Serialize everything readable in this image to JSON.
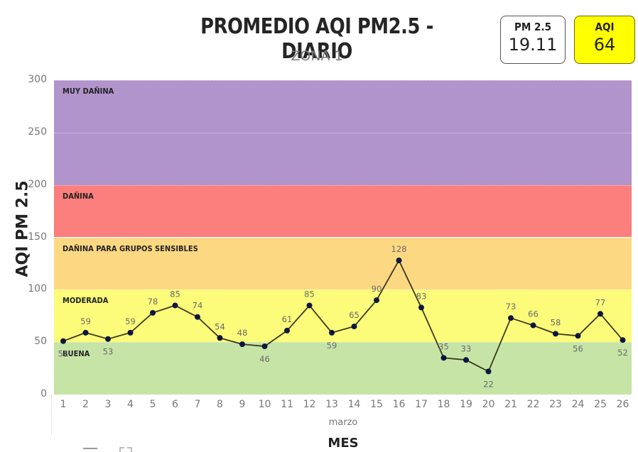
{
  "header": {
    "title": "PROMEDIO AQI PM2.5 - DIARIO",
    "subtitle": "ZONA 1"
  },
  "cards": {
    "pm25": {
      "label": "PM 2.5",
      "value": "19.11",
      "border": "#555555",
      "bg": "#ffffff"
    },
    "aqi": {
      "label": "AQI",
      "value": "64",
      "border": "#6b6b00",
      "bg": "#ffff00"
    }
  },
  "axes": {
    "ylabel": "AQI PM 2.5",
    "yticks": [
      "300",
      "250",
      "200",
      "150",
      "100",
      "50",
      "0"
    ],
    "xlabel_sub": "marzo",
    "xlabel": "MES"
  },
  "bands": [
    {
      "label": "MUY DAÑINA",
      "from": 200,
      "to": 300,
      "color": "#b294cc"
    },
    {
      "label": "DAÑINA",
      "from": 150,
      "to": 200,
      "color": "#fb7f7d"
    },
    {
      "label": "DAÑINA PARA GRUPOS SENSIBLES",
      "from": 100,
      "to": 150,
      "color": "#fdd883"
    },
    {
      "label": "MODERADA",
      "from": 50,
      "to": 100,
      "color": "#fcfb7a"
    },
    {
      "label": "BUENA",
      "from": 0,
      "to": 50,
      "color": "#c6e4a6"
    }
  ],
  "chart_data": {
    "type": "line",
    "title": "PROMEDIO AQI PM2.5 - DIARIO",
    "subtitle": "ZONA 1",
    "xlabel": "MES (marzo)",
    "ylabel": "AQI PM 2.5",
    "ylim": [
      0,
      300
    ],
    "yticks": [
      0,
      50,
      100,
      150,
      200,
      250,
      300
    ],
    "grid": true,
    "x": [
      1,
      2,
      3,
      4,
      5,
      6,
      7,
      8,
      9,
      10,
      11,
      12,
      13,
      14,
      15,
      16,
      17,
      18,
      19,
      20,
      21,
      22,
      23,
      24,
      25,
      26
    ],
    "series": [
      {
        "name": "AQI PM 2.5",
        "color": "#3a3a1a",
        "marker_color": "#0d1640",
        "values": [
          51,
          59,
          53,
          59,
          78,
          85,
          74,
          54,
          48,
          46,
          61,
          85,
          59,
          65,
          90,
          128,
          83,
          35,
          33,
          22,
          73,
          66,
          58,
          56,
          77,
          52
        ]
      }
    ],
    "background_bands": [
      {
        "label": "BUENA",
        "range": [
          0,
          50
        ]
      },
      {
        "label": "MODERADA",
        "range": [
          50,
          100
        ]
      },
      {
        "label": "DAÑINA PARA GRUPOS SENSIBLES",
        "range": [
          100,
          150
        ]
      },
      {
        "label": "DAÑINA",
        "range": [
          150,
          200
        ]
      },
      {
        "label": "MUY DAÑINA",
        "range": [
          200,
          300
        ]
      }
    ],
    "label_positions": [
      "below",
      "above",
      "below",
      "above",
      "above",
      "above",
      "above",
      "above",
      "above",
      "below",
      "above",
      "above",
      "below",
      "above",
      "above",
      "above",
      "above",
      "above",
      "above",
      "below",
      "above",
      "above",
      "above",
      "below",
      "above",
      "below"
    ]
  },
  "footer_icons": [
    "focus-mode-icon",
    "expand-icon"
  ]
}
